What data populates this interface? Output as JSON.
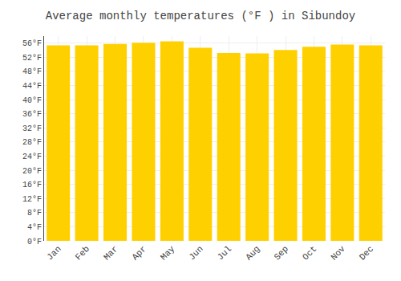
{
  "chart_data": {
    "type": "bar",
    "title": "Average monthly temperatures (°F ) in Sibundoy",
    "categories": [
      "Jan",
      "Feb",
      "Mar",
      "Apr",
      "May",
      "Jun",
      "Jul",
      "Aug",
      "Sep",
      "Oct",
      "Nov",
      "Dec"
    ],
    "values": [
      55.4,
      55.4,
      55.8,
      56.1,
      56.5,
      54.7,
      53.2,
      53.1,
      54.1,
      55.0,
      55.6,
      55.4
    ],
    "color": "#FFD000",
    "ylim": [
      0,
      58
    ],
    "yticks": [
      {
        "value": 0,
        "label": "0°F"
      },
      {
        "value": 4,
        "label": "4°F"
      },
      {
        "value": 8,
        "label": "8°F"
      },
      {
        "value": 12,
        "label": "12°F"
      },
      {
        "value": 16,
        "label": "16°F"
      },
      {
        "value": 20,
        "label": "20°F"
      },
      {
        "value": 24,
        "label": "24°F"
      },
      {
        "value": 28,
        "label": "28°F"
      },
      {
        "value": 32,
        "label": "32°F"
      },
      {
        "value": 36,
        "label": "36°F"
      },
      {
        "value": 40,
        "label": "40°F"
      },
      {
        "value": 44,
        "label": "44°F"
      },
      {
        "value": 48,
        "label": "48°F"
      },
      {
        "value": 52,
        "label": "52°F"
      },
      {
        "value": 56,
        "label": "56°F"
      }
    ],
    "grid": true
  }
}
